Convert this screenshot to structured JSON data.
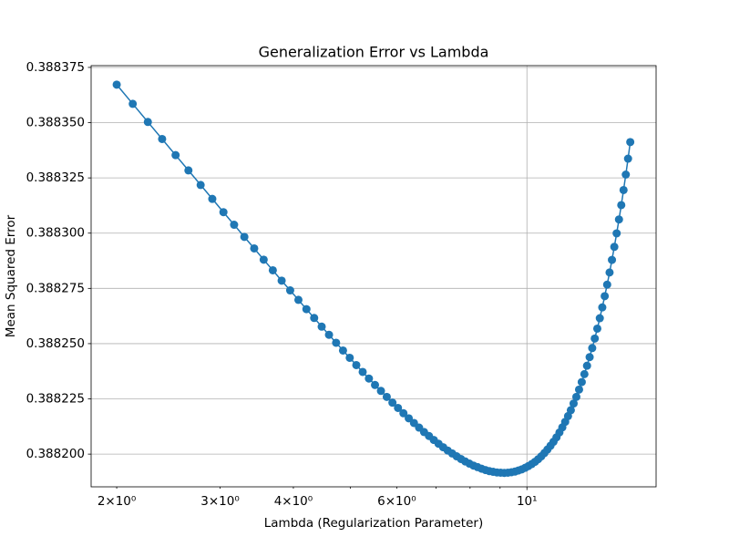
{
  "chart_data": {
    "type": "line",
    "title": "Generalization Error vs Lambda",
    "xlabel": "Lambda (Regularization Parameter)",
    "ylabel": "Mean Squared Error",
    "xscale": "log",
    "grid": true,
    "color": "#1f77b4",
    "marker": "circle",
    "xlim": [
      1.809,
      16.6
    ],
    "ylim": [
      0.3881852,
      0.3883758
    ],
    "xticks": [
      {
        "value": 10,
        "label": "10¹"
      }
    ],
    "xminorticks": [
      {
        "value": 2,
        "label": "2×10⁰"
      },
      {
        "value": 3,
        "label": "3×10⁰"
      },
      {
        "value": 4,
        "label": "4×10⁰"
      },
      {
        "value": 6,
        "label": "6×10⁰"
      },
      5,
      7,
      8,
      9
    ],
    "yticks": [
      {
        "value": 0.3882,
        "label": "0.388200"
      },
      0.388225,
      {
        "value": 0.38825,
        "label": "0.388250"
      },
      0.388275,
      {
        "value": 0.3883,
        "label": "0.388300"
      },
      0.388325,
      {
        "value": 0.38835,
        "label": "0.388350"
      },
      0.388375
    ],
    "x": [
      2.0,
      2.13,
      2.26,
      2.39,
      2.52,
      2.65,
      2.78,
      2.91,
      3.04,
      3.17,
      3.3,
      3.43,
      3.56,
      3.69,
      3.82,
      3.95,
      4.08,
      4.21,
      4.34,
      4.47,
      4.6,
      4.73,
      4.86,
      4.99,
      5.12,
      5.25,
      5.38,
      5.51,
      5.64,
      5.77,
      5.9,
      6.03,
      6.16,
      6.29,
      6.42,
      6.55,
      6.68,
      6.81,
      6.94,
      7.07,
      7.2,
      7.33,
      7.46,
      7.59,
      7.72,
      7.85,
      7.98,
      8.11,
      8.24,
      8.37,
      8.5,
      8.63,
      8.76,
      8.89,
      9.02,
      9.15,
      9.28,
      9.41,
      9.54,
      9.67,
      9.8,
      9.93,
      10.06,
      10.19,
      10.32,
      10.45,
      10.58,
      10.71,
      10.84,
      10.97,
      11.1,
      11.23,
      11.36,
      11.49,
      11.62,
      11.75,
      11.88,
      12.01,
      12.14,
      12.27,
      12.4,
      12.53,
      12.66,
      12.79,
      12.92,
      13.05,
      13.18,
      13.31,
      13.44,
      13.57,
      13.7,
      13.83,
      13.96,
      14.09,
      14.22,
      14.35,
      14.48,
      14.61,
      14.74,
      14.87,
      15.0
    ],
    "values": [
      0.3883672,
      0.3883585,
      0.3883503,
      0.3883426,
      0.3883353,
      0.3883284,
      0.3883218,
      0.3883155,
      0.3883095,
      0.3883038,
      0.3882983,
      0.3882931,
      0.388288,
      0.3882832,
      0.3882785,
      0.3882741,
      0.3882698,
      0.3882656,
      0.3882616,
      0.3882577,
      0.388254,
      0.3882504,
      0.3882469,
      0.3882436,
      0.3882403,
      0.3882372,
      0.3882342,
      0.3882313,
      0.3882286,
      0.3882259,
      0.3882233,
      0.3882209,
      0.3882185,
      0.3882162,
      0.3882141,
      0.388212,
      0.38821,
      0.3882082,
      0.3882064,
      0.3882047,
      0.3882031,
      0.3882016,
      0.3882003,
      0.388199,
      0.3881978,
      0.3881967,
      0.3881957,
      0.3881948,
      0.3881941,
      0.3881934,
      0.3881928,
      0.3881923,
      0.388192,
      0.3881917,
      0.3881916,
      0.3881915,
      0.3881916,
      0.3881918,
      0.3881921,
      0.3881926,
      0.3881931,
      0.3881938,
      0.3881946,
      0.3881955,
      0.3881965,
      0.3881977,
      0.388199,
      0.3882005,
      0.3882021,
      0.3882038,
      0.3882056,
      0.3882076,
      0.3882098,
      0.3882121,
      0.3882146,
      0.3882172,
      0.3882199,
      0.3882229,
      0.3882259,
      0.3882292,
      0.3882326,
      0.3882362,
      0.38824,
      0.3882439,
      0.388248,
      0.3882523,
      0.3882568,
      0.3882615,
      0.3882664,
      0.3882715,
      0.3882767,
      0.3882822,
      0.3882879,
      0.3882938,
      0.3882999,
      0.3883062,
      0.3883127,
      0.3883195,
      0.3883265,
      0.3883337,
      0.3883412
    ]
  }
}
